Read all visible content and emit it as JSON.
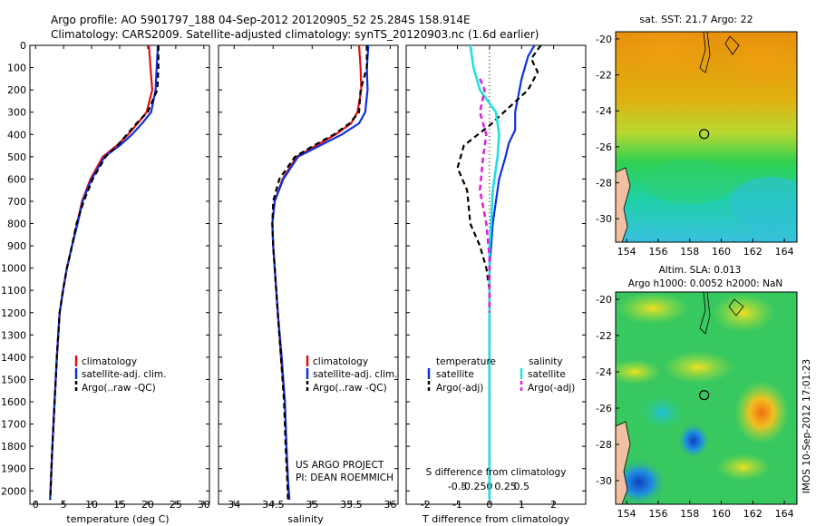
{
  "header": {
    "line1": "Argo profile: AO 5901797_188 04-Sep-2012 20120905_52 25.284S 158.914E",
    "line2": "Climatology: CARS2009. Satellite-adjusted climatology: synTS_20120903.nc (1.6d earlier)"
  },
  "colors": {
    "climatology": "#e01010",
    "satellite": "#1030e0",
    "argo": "#000000",
    "sat_s": "#20e0e0",
    "argo_s": "#e020e0"
  },
  "chart_data": [
    {
      "type": "line",
      "id": "temperature",
      "xlabel": "temperature (deg C)",
      "ylabel": "",
      "xlim": [
        -1,
        31
      ],
      "ylim": [
        2060,
        0
      ],
      "xticks": [
        "0",
        "5",
        "10",
        "15",
        "20",
        "25",
        "30"
      ],
      "yticks": [
        "0",
        "100",
        "200",
        "300",
        "400",
        "500",
        "600",
        "700",
        "800",
        "900",
        "1000",
        "1100",
        "1200",
        "1300",
        "1400",
        "1500",
        "1600",
        "1700",
        "1800",
        "1900",
        "2000"
      ],
      "legend": [
        "climatology",
        "satellite-adj. clim.",
        "Argo(..raw -QC)"
      ],
      "series": [
        {
          "name": "climatology",
          "style": "climatology",
          "x": [
            20.2,
            20.5,
            20.8,
            19.8,
            18.2,
            16.5,
            14.5,
            12.0,
            9.8,
            8.3,
            7.4,
            6.5,
            5.6,
            4.9,
            4.3,
            3.8,
            3.4,
            3.0,
            2.6
          ],
          "y": [
            0,
            100,
            200,
            300,
            350,
            400,
            450,
            500,
            600,
            700,
            800,
            900,
            1000,
            1100,
            1200,
            1400,
            1600,
            1800,
            2040
          ]
        },
        {
          "name": "satellite-adj. clim.",
          "style": "satellite",
          "x": [
            21.8,
            21.6,
            21.4,
            20.6,
            19.0,
            17.2,
            15.0,
            12.3,
            10.0,
            8.4,
            7.5,
            6.5,
            5.6,
            4.9,
            4.3,
            3.8,
            3.4,
            3.0,
            2.6
          ],
          "y": [
            0,
            100,
            200,
            300,
            350,
            400,
            450,
            500,
            600,
            700,
            800,
            900,
            1000,
            1100,
            1200,
            1400,
            1600,
            1800,
            2040
          ]
        },
        {
          "name": "Argo(..raw -QC)",
          "style": "argo",
          "x": [
            21.9,
            21.9,
            21.7,
            20.0,
            18.0,
            16.3,
            14.6,
            12.5,
            10.2,
            8.6,
            7.3,
            6.5,
            5.6,
            4.9,
            4.3,
            3.8,
            3.4,
            3.0,
            2.6
          ],
          "y": [
            0,
            100,
            200,
            300,
            350,
            400,
            450,
            500,
            600,
            700,
            800,
            900,
            1000,
            1100,
            1200,
            1400,
            1600,
            1800,
            2040
          ]
        }
      ]
    },
    {
      "type": "line",
      "id": "salinity",
      "xlabel": "salinity",
      "xlim": [
        33.8,
        36.1
      ],
      "ylim": [
        2060,
        0
      ],
      "xticks": [
        "34",
        "34.5",
        "35",
        "35.5",
        "36"
      ],
      "legend": [
        "climatology",
        "satellite-adj. clim.",
        "Argo(..raw -QC)"
      ],
      "annotation": [
        "US ARGO PROJECT",
        "PI: DEAN ROEMMICH"
      ],
      "series": [
        {
          "name": "climatology",
          "style": "climatology",
          "x": [
            35.6,
            35.62,
            35.63,
            35.58,
            35.5,
            35.3,
            35.05,
            34.8,
            34.62,
            34.52,
            34.49,
            34.5,
            34.52,
            34.56,
            34.6,
            34.65,
            34.67,
            34.69,
            34.7
          ],
          "y": [
            0,
            100,
            200,
            300,
            350,
            400,
            450,
            500,
            600,
            700,
            800,
            900,
            1000,
            1200,
            1400,
            1600,
            1800,
            1950,
            2040
          ]
        },
        {
          "name": "satellite-adj. clim.",
          "style": "satellite",
          "x": [
            35.72,
            35.7,
            35.71,
            35.68,
            35.6,
            35.38,
            35.1,
            34.82,
            34.63,
            34.52,
            34.49,
            34.5,
            34.52,
            34.56,
            34.61,
            34.65,
            34.67,
            34.69,
            34.71
          ],
          "y": [
            0,
            100,
            200,
            300,
            350,
            400,
            450,
            500,
            600,
            700,
            800,
            900,
            1000,
            1200,
            1400,
            1600,
            1800,
            1950,
            2040
          ]
        },
        {
          "name": "Argo(..raw -QC)",
          "style": "argo",
          "x": [
            35.7,
            35.7,
            35.62,
            35.6,
            35.48,
            35.28,
            35.02,
            34.78,
            34.58,
            34.5,
            34.49,
            34.5,
            34.52,
            34.56,
            34.6,
            34.64,
            34.66,
            34.68,
            34.69
          ],
          "y": [
            0,
            100,
            200,
            300,
            350,
            400,
            450,
            500,
            600,
            700,
            800,
            900,
            1000,
            1200,
            1400,
            1600,
            1800,
            1950,
            2040
          ]
        }
      ]
    },
    {
      "type": "line",
      "id": "difference",
      "xlabel": "T difference from climatology",
      "xlabel_top": "S difference from climatology",
      "xlim": [
        -2.6,
        3.0
      ],
      "ylim": [
        2060,
        0
      ],
      "xticks": [
        "-2",
        "-1",
        "0",
        "1",
        "2"
      ],
      "xticks_s": [
        "-0.5",
        "-0.25",
        "0",
        "0.25",
        "0.5"
      ],
      "legend_t_title": "temperature",
      "legend_s_title": "salinity",
      "legend": [
        "satellite",
        "Argo(-adj)",
        "satellite",
        "Argo(-adj)"
      ],
      "series": [
        {
          "name": "temperature satellite",
          "style": "satellite",
          "x": [
            1.4,
            1.2,
            1.0,
            0.8,
            0.8,
            0.6,
            0.5,
            0.3,
            0.2,
            0.1,
            0.05,
            0.0,
            0.0,
            0.0
          ],
          "y": [
            0,
            50,
            150,
            300,
            380,
            440,
            500,
            600,
            700,
            800,
            900,
            1000,
            1400,
            2040
          ]
        },
        {
          "name": "temperature Argo(-adj)",
          "style": "argo",
          "x": [
            1.6,
            1.3,
            1.5,
            1.2,
            0.0,
            -0.8,
            -1.0,
            -0.7,
            -0.6,
            -0.3,
            -0.1,
            0.0,
            0.0
          ],
          "y": [
            0,
            60,
            120,
            200,
            360,
            450,
            550,
            650,
            800,
            900,
            1000,
            1100,
            2040
          ]
        },
        {
          "name": "salinity satellite",
          "style": "sat_s",
          "x": [
            -0.6,
            -0.5,
            -0.3,
            0.2,
            0.3,
            0.25,
            0.1,
            0.05,
            0.0,
            0.0,
            0.0
          ],
          "y": [
            0,
            100,
            200,
            300,
            400,
            500,
            650,
            800,
            900,
            1200,
            2040
          ]
        },
        {
          "name": "salinity Argo(-adj)",
          "style": "argo_s",
          "x": [
            -0.3,
            -0.15,
            -0.3,
            -0.1,
            -0.2,
            -0.3,
            -0.1,
            0.0,
            0.0
          ],
          "y": [
            150,
            200,
            300,
            400,
            500,
            650,
            800,
            950,
            1200
          ]
        }
      ]
    }
  ],
  "maps": {
    "top_title": "sat. SST: 21.7 Argo: 22",
    "bottom_title_line1": "Altim. SLA: 0.013",
    "bottom_title_line2": "Argo h1000: 0.0052 h2000: NaN",
    "lat_ticks": [
      "-20",
      "-22",
      "-24",
      "-26",
      "-28",
      "-30"
    ],
    "lon_ticks": [
      "154",
      "156",
      "158",
      "160",
      "162",
      "164"
    ],
    "float_location": {
      "lon": 158.914,
      "lat": -25.284
    }
  },
  "footer": {
    "timestamp": "IMOS 10-Sep-2012 17:01:23"
  }
}
